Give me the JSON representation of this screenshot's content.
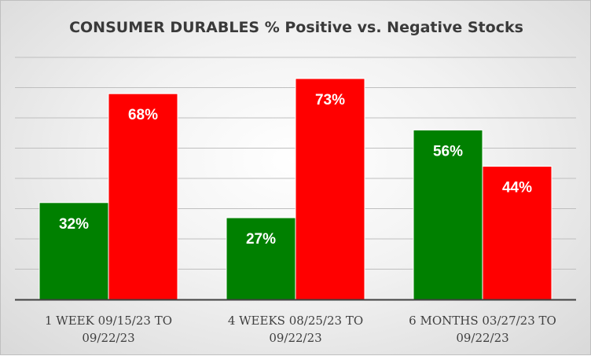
{
  "chart_data": {
    "type": "bar",
    "title": "CONSUMER DURABLES % Positive vs. Negative Stocks",
    "categories": [
      [
        "1 WEEK 09/15/23 TO",
        "09/22/23"
      ],
      [
        "4 WEEKS 08/25/23 TO",
        "09/22/23"
      ],
      [
        "6 MONTHS 03/27/23 TO",
        "09/22/23"
      ]
    ],
    "series": [
      {
        "values": [
          32,
          27,
          56
        ],
        "labels": [
          "32%",
          "27%",
          "56%"
        ],
        "color": "#008000"
      },
      {
        "values": [
          68,
          73,
          44
        ],
        "labels": [
          "68%",
          "73%",
          "44%"
        ],
        "color": "#ff0000"
      }
    ],
    "ylim": [
      0,
      80
    ],
    "grid": true,
    "legend": "none"
  }
}
